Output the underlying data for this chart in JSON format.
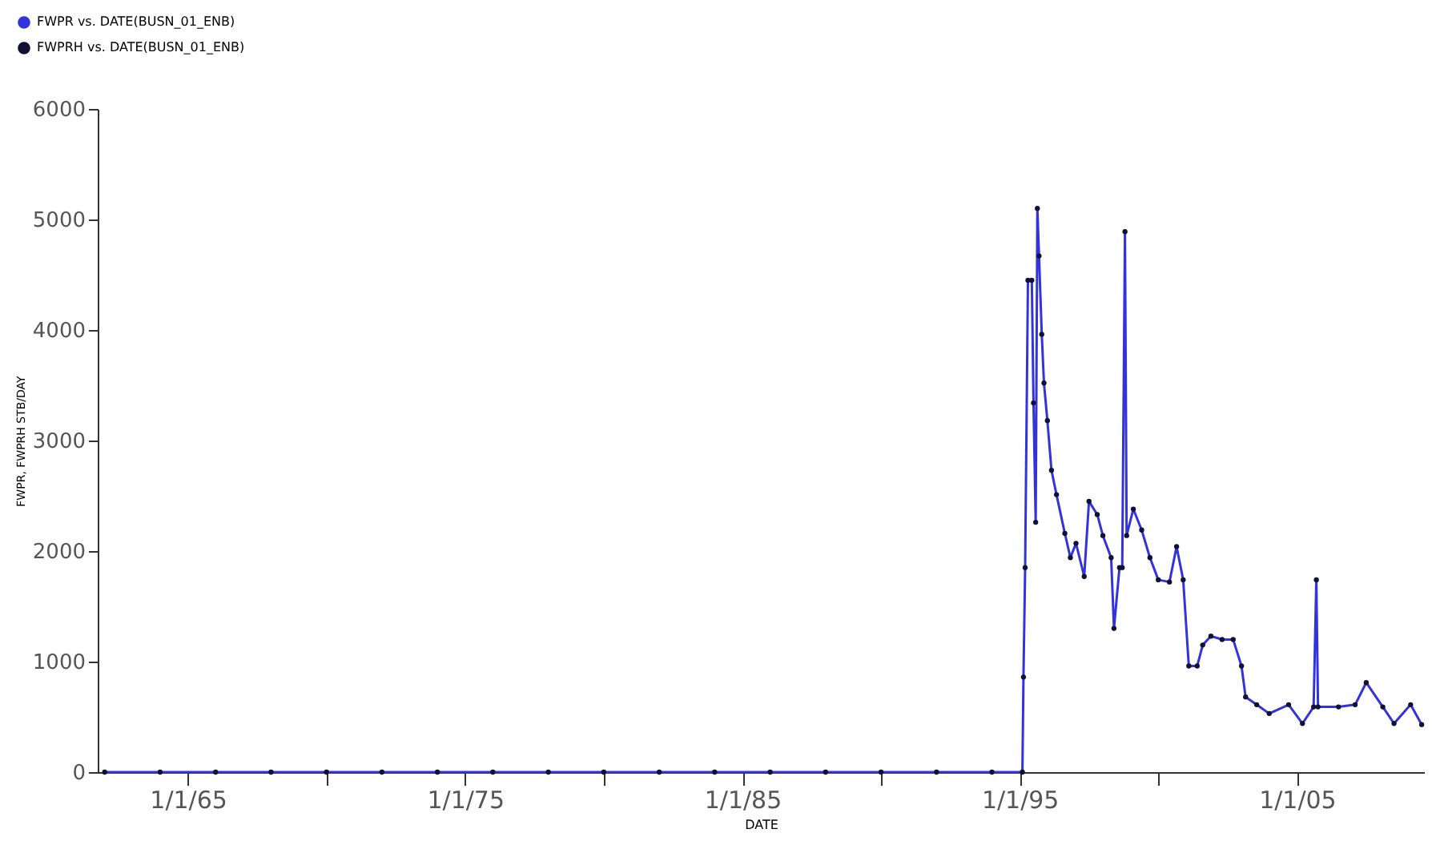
{
  "chart_data": {
    "type": "line",
    "xlabel": "DATE",
    "ylabel": "FWPR, FWPRH   STB/DAY",
    "xlim": [
      "1961-10-01",
      "2009-08-01"
    ],
    "xticks": [
      {
        "value": "1965-01-01",
        "label": "1/1/65"
      },
      {
        "value": "1970-01-01",
        "label": null
      },
      {
        "value": "1975-01-01",
        "label": "1/1/75"
      },
      {
        "value": "1980-01-01",
        "label": null
      },
      {
        "value": "1985-01-01",
        "label": "1/1/85"
      },
      {
        "value": "1990-01-01",
        "label": null
      },
      {
        "value": "1995-01-01",
        "label": "1/1/95"
      },
      {
        "value": "2000-01-01",
        "label": null
      },
      {
        "value": "2005-01-01",
        "label": "1/1/05"
      }
    ],
    "ylim": [
      0,
      6000
    ],
    "yticks": [
      0,
      1000,
      2000,
      3000,
      4000,
      5000,
      6000
    ],
    "grid": false,
    "legend": "top left",
    "x": [
      "1962-01-01",
      "1964-01-01",
      "1966-01-01",
      "1968-01-01",
      "1970-01-01",
      "1972-01-01",
      "1974-01-01",
      "1976-01-01",
      "1978-01-01",
      "1980-01-01",
      "1982-01-01",
      "1984-01-01",
      "1986-01-01",
      "1988-01-01",
      "1990-01-01",
      "1992-01-01",
      "1994-01-01",
      "1995-02-06",
      "1995-02-20",
      "1995-03-14",
      "1995-04-20",
      "1995-06-10",
      "1995-07-02",
      "1995-07-31",
      "1995-08-22",
      "1995-09-13",
      "1995-10-19",
      "1995-11-17",
      "1996-01-01",
      "1996-02-24",
      "1996-04-30",
      "1996-08-18",
      "1996-10-30",
      "1997-01-12",
      "1997-04-30",
      "1997-07-02",
      "1997-10-19",
      "1998-01-01",
      "1998-04-20",
      "1998-05-27",
      "1998-08-08",
      "1998-09-13",
      "1998-10-19",
      "1998-11-10",
      "1999-02-06",
      "1999-05-27",
      "1999-09-13",
      "2000-01-01",
      "2000-05-27",
      "2000-08-29",
      "2000-11-24",
      "2001-02-06",
      "2001-05-27",
      "2001-08-08",
      "2001-11-24",
      "2002-04-20",
      "2002-09-13",
      "2003-01-01",
      "2003-02-24",
      "2003-07-20",
      "2004-01-01",
      "2004-09-13",
      "2005-03-14",
      "2005-08-08",
      "2005-09-13",
      "2005-10-05",
      "2006-07-02",
      "2007-02-06",
      "2007-07-02",
      "2008-02-06",
      "2008-07-02",
      "2009-02-06",
      "2009-07-02"
    ],
    "series": [
      {
        "name": "FWPR vs. DATE(BUSN_01_ENB)",
        "color": "#3333dd",
        "marker": "none",
        "line_style": "solid",
        "values": [
          0,
          0,
          0,
          0,
          0,
          0,
          0,
          0,
          0,
          0,
          0,
          0,
          0,
          0,
          0,
          0,
          0,
          0,
          860,
          1850,
          4450,
          4450,
          3340,
          2260,
          5100,
          4670,
          3960,
          3520,
          3180,
          2730,
          2510,
          2160,
          1940,
          2070,
          1770,
          2450,
          2330,
          2140,
          1940,
          1300,
          1850,
          1850,
          4890,
          2140,
          2380,
          2190,
          1940,
          1740,
          1720,
          2040,
          1740,
          960,
          960,
          1150,
          1230,
          1200,
          1200,
          960,
          680,
          610,
          530,
          610,
          440,
          590,
          1740,
          590,
          590,
          610,
          810,
          590,
          440,
          610,
          430
        ]
      },
      {
        "name": "FWPRH vs. DATE(BUSN_01_ENB)",
        "type": "scatter",
        "color": "#111133",
        "marker": "circle",
        "values": [
          0,
          0,
          0,
          0,
          0,
          0,
          0,
          0,
          0,
          0,
          0,
          0,
          0,
          0,
          0,
          0,
          0,
          0,
          860,
          1850,
          4450,
          4450,
          3340,
          2260,
          5100,
          4670,
          3960,
          3520,
          3180,
          2730,
          2510,
          2160,
          1940,
          2070,
          1770,
          2450,
          2330,
          2140,
          1940,
          1300,
          1850,
          1850,
          4890,
          2140,
          2380,
          2190,
          1940,
          1740,
          1720,
          2040,
          1740,
          960,
          960,
          1150,
          1230,
          1200,
          1200,
          960,
          680,
          610,
          530,
          610,
          440,
          590,
          1740,
          590,
          590,
          610,
          810,
          590,
          440,
          610,
          430
        ]
      }
    ]
  }
}
